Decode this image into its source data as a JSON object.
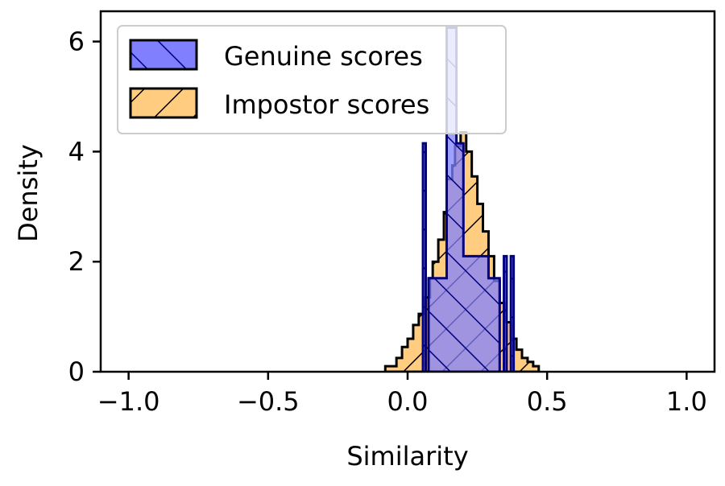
{
  "chart_data": {
    "type": "histogram",
    "xlabel": "Similarity",
    "ylabel": "Density",
    "xlim": [
      -1.1,
      1.1
    ],
    "ylim": [
      0,
      6.55
    ],
    "xticks": [
      -1.0,
      -0.5,
      0.0,
      0.5,
      1.0
    ],
    "xtick_labels": [
      "−1.0",
      "−0.5",
      "0.0",
      "0.5",
      "1.0"
    ],
    "yticks": [
      0,
      2,
      4,
      6
    ],
    "ytick_labels": [
      "0",
      "2",
      "4",
      "6"
    ],
    "grid": false,
    "legend_position": "top-left",
    "series": [
      {
        "name": "Impostor scores",
        "color": "#ffcc80",
        "hatch": "backslash",
        "steps": [
          [
            -0.08,
            0.1
          ],
          [
            -0.06,
            0.1
          ],
          [
            -0.04,
            0.25
          ],
          [
            -0.02,
            0.45
          ],
          [
            0.0,
            0.6
          ],
          [
            0.02,
            0.85
          ],
          [
            0.04,
            1.05
          ],
          [
            0.06,
            1.35
          ],
          [
            0.08,
            1.7
          ],
          [
            0.09,
            2.0
          ],
          [
            0.11,
            2.4
          ],
          [
            0.13,
            2.9
          ],
          [
            0.14,
            3.5
          ],
          [
            0.16,
            3.75
          ],
          [
            0.17,
            4.1
          ],
          [
            0.19,
            4.35
          ],
          [
            0.21,
            4.0
          ],
          [
            0.23,
            3.55
          ],
          [
            0.25,
            3.05
          ],
          [
            0.27,
            2.55
          ],
          [
            0.29,
            2.1
          ],
          [
            0.31,
            1.65
          ],
          [
            0.33,
            1.25
          ],
          [
            0.35,
            0.9
          ],
          [
            0.37,
            0.6
          ],
          [
            0.39,
            0.4
          ],
          [
            0.41,
            0.25
          ],
          [
            0.43,
            0.18
          ],
          [
            0.45,
            0.1
          ],
          [
            0.47,
            0.0
          ]
        ]
      },
      {
        "name": "Genuine scores",
        "color": "#8080ff",
        "hatch": "slash",
        "steps": [
          [
            0.055,
            4.15
          ],
          [
            0.065,
            0.0
          ],
          [
            0.075,
            1.7
          ],
          [
            0.085,
            1.7
          ],
          [
            0.13,
            1.7
          ],
          [
            0.135,
            1.7
          ],
          [
            0.14,
            6.25
          ],
          [
            0.16,
            6.25
          ],
          [
            0.175,
            4.15
          ],
          [
            0.2,
            2.1
          ],
          [
            0.24,
            2.1
          ],
          [
            0.29,
            1.7
          ],
          [
            0.33,
            0.0
          ],
          [
            0.345,
            2.1
          ],
          [
            0.355,
            0.0
          ],
          [
            0.37,
            2.1
          ],
          [
            0.38,
            0.0
          ]
        ]
      }
    ]
  }
}
